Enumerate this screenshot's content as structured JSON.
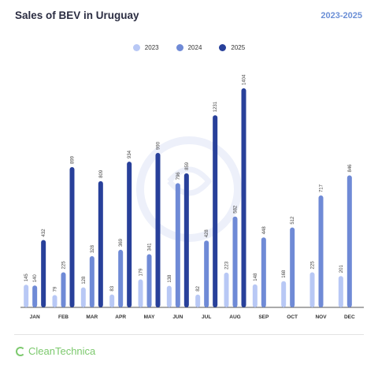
{
  "header": {
    "title": "Sales of BEV in Uruguay",
    "period": "2023-2025"
  },
  "brand": {
    "name": "CleanTechnica"
  },
  "colors": {
    "2023": "#b8c8f5",
    "2024": "#6f8ad6",
    "2025": "#28409a",
    "watermark": "#edf0fa",
    "brand": "#7cc96d"
  },
  "chart_data": {
    "type": "bar",
    "title": "Sales of BEV in Uruguay",
    "categories": [
      "JAN",
      "FEB",
      "MAR",
      "APR",
      "MAY",
      "JUN",
      "JUL",
      "AUG",
      "SEP",
      "OCT",
      "NOV",
      "DEC"
    ],
    "series": [
      {
        "name": "2023",
        "values": [
          145,
          79,
          128,
          83,
          179,
          138,
          82,
          223,
          148,
          168,
          225,
          201
        ]
      },
      {
        "name": "2024",
        "values": [
          140,
          225,
          328,
          369,
          341,
          796,
          428,
          582,
          448,
          512,
          717,
          846
        ]
      },
      {
        "name": "2025",
        "values": [
          432,
          899,
          809,
          934,
          990,
          859,
          1231,
          1404,
          null,
          null,
          null,
          null
        ]
      }
    ],
    "ylim": [
      0,
      1404
    ],
    "grid": false,
    "legend_position": "top-center",
    "data_labels": true
  }
}
